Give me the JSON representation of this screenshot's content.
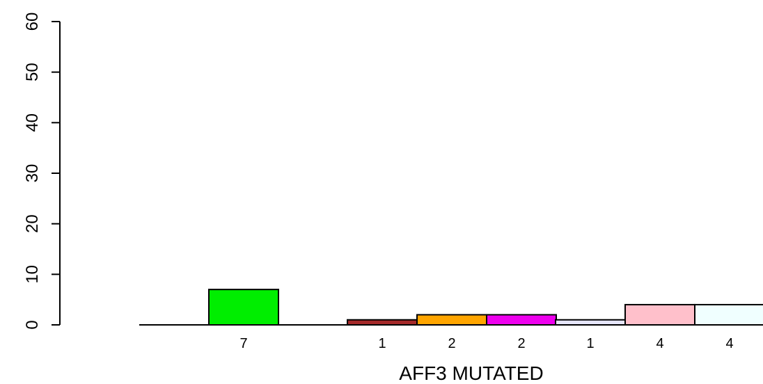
{
  "chart_data": {
    "type": "bar",
    "title": "",
    "xlabel": "AFF3 MUTATED",
    "ylabel": "",
    "ylim": [
      0,
      60
    ],
    "yticks": [
      0,
      10,
      20,
      30,
      40,
      50,
      60
    ],
    "grid": false,
    "legend": "none",
    "bars": [
      {
        "value": 7,
        "label": "7",
        "color": "#00ee00"
      },
      {
        "value": 1,
        "label": "1",
        "color": "#a52a2a"
      },
      {
        "value": 2,
        "label": "2",
        "color": "#ffa500"
      },
      {
        "value": 2,
        "label": "2",
        "color": "#ee00ee"
      },
      {
        "value": 1,
        "label": "1",
        "color": "#e6e6fa"
      },
      {
        "value": 4,
        "label": "4",
        "color": "#ffc0cb"
      },
      {
        "value": 4,
        "label": "4",
        "color": "#f0ffff"
      }
    ]
  }
}
